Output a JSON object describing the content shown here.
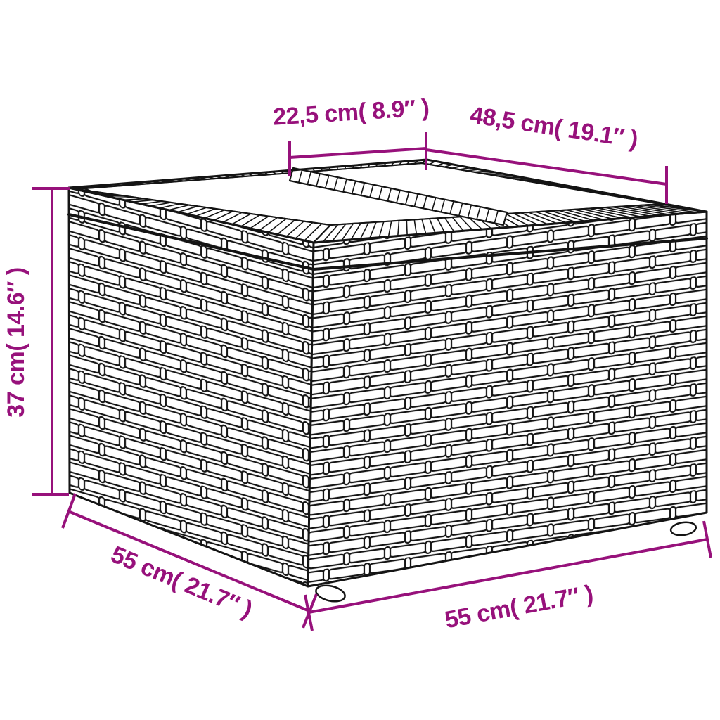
{
  "figure": {
    "kind": "furniture-dimension-diagram",
    "subject": "poly rattan side table with glass top",
    "colors": {
      "dimension_accent": "#97117b",
      "line_art": "#141414",
      "background": "#ffffff"
    },
    "dimension_labels": {
      "glass_panel_width": "22,5 cm( 8.9″ )",
      "glass_top_width": "48,5 cm( 19.1″ )",
      "height": "37 cm( 14.6″ )",
      "depth": "55 cm( 21.7″ )",
      "width": "55 cm( 21.7″ )"
    }
  }
}
